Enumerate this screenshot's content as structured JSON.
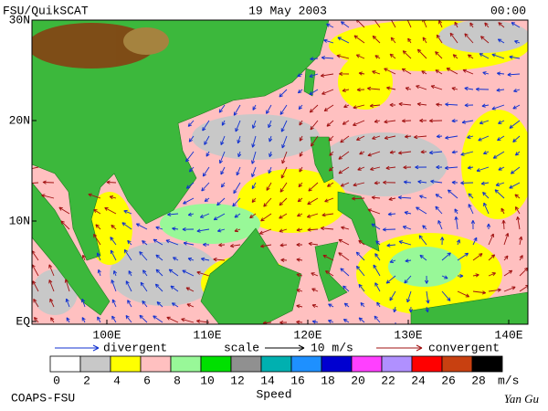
{
  "header": {
    "product": "FSU/QuikSCAT",
    "date": "19 May 2003",
    "time": "00:00"
  },
  "map": {
    "lat_ticks": [
      {
        "value": 30,
        "label": "30N"
      },
      {
        "value": 20,
        "label": "20N"
      },
      {
        "value": 10,
        "label": "10N"
      },
      {
        "value": 0,
        "label": "EQ"
      }
    ],
    "lon_ticks": [
      {
        "value": 100,
        "label": "100E"
      },
      {
        "value": 110,
        "label": "110E"
      },
      {
        "value": 120,
        "label": "120E"
      },
      {
        "value": 130,
        "label": "130E"
      },
      {
        "value": 140,
        "label": "140E"
      }
    ]
  },
  "legend": {
    "divergent": "divergent",
    "scale": "scale",
    "scale_value": "10 m/s",
    "convergent": "convergent",
    "divergent_color": "#1030d0",
    "convergent_color": "#a01010"
  },
  "colorbar": {
    "labels": [
      "0",
      "2",
      "4",
      "6",
      "8",
      "10",
      "12",
      "14",
      "16",
      "18",
      "20",
      "22",
      "24",
      "26",
      "28"
    ],
    "unit": "m/s",
    "title": "Speed",
    "colors": [
      "#ffffff",
      "#c8c8c8",
      "#ffff00",
      "#ffc0c0",
      "#98f898",
      "#00e000",
      "#909090",
      "#00b0b0",
      "#1e90ff",
      "#0000d0",
      "#ff40ff",
      "#b090ff",
      "#ff0000",
      "#c84010",
      "#000000"
    ]
  },
  "footer": {
    "org": "COAPS-FSU",
    "author": "Yan Gu"
  }
}
